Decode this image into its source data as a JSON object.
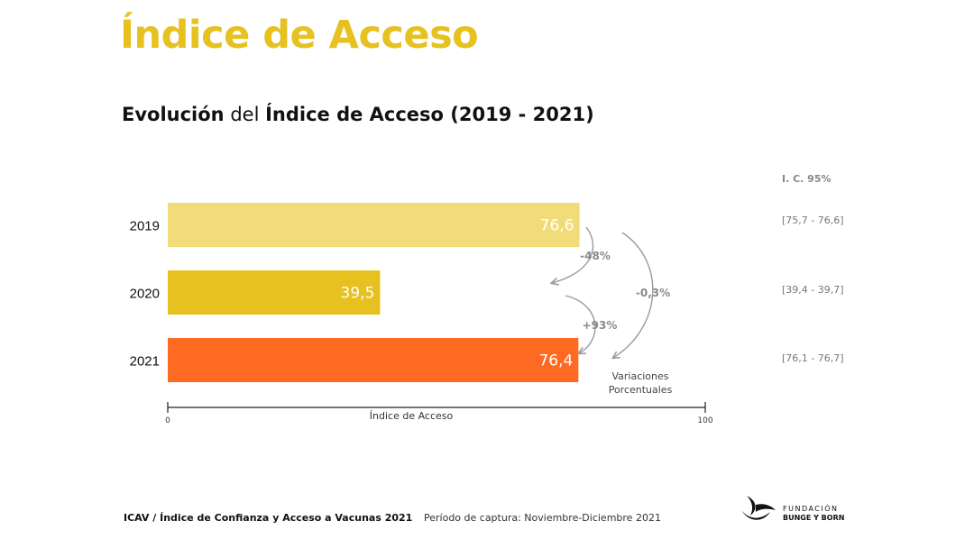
{
  "page": {
    "title": "Índice de Acceso",
    "subtitle_parts": [
      "Evolución",
      " del ",
      "Índice de Acceso (2019 - 2021)"
    ]
  },
  "ci": {
    "header": "I. C. 95%",
    "values": [
      "[75,7 - 76,6]",
      "[39,4 - 39,7]",
      "[76,1 - 76,7]"
    ]
  },
  "variations": {
    "label_lines": [
      "Variaciones",
      "Porcentuales"
    ],
    "change_2019_2020": "-48%",
    "change_2020_2021": "+93%",
    "change_2019_2021": "-0,3%"
  },
  "footer": {
    "left": "ICAV / Índice de Confianza y Acceso a Vacunas 2021",
    "period": "Período de captura: Noviembre-Diciembre 2021",
    "logo_line1": "FUNDACIÓN",
    "logo_line2": "BUNGE Y BORN"
  },
  "colors": {
    "title": "#E6C11F",
    "bar_2019": "#F2DC7A",
    "bar_2020": "#E6C11F",
    "bar_2021": "#FF6A22",
    "arrows": "#9A9A9A"
  },
  "chart_data": {
    "type": "bar",
    "orientation": "horizontal",
    "categories": [
      "2019",
      "2020",
      "2021"
    ],
    "values": [
      76.6,
      39.5,
      76.4
    ],
    "value_labels": [
      "76,6",
      "39,5",
      "76,4"
    ],
    "xlabel": "Índice de Acceso",
    "xlim": [
      0,
      100
    ],
    "x_ticks": [
      "0",
      "100"
    ],
    "bar_colors": [
      "#F2DC7A",
      "#E6C11F",
      "#FF6A22"
    ]
  }
}
